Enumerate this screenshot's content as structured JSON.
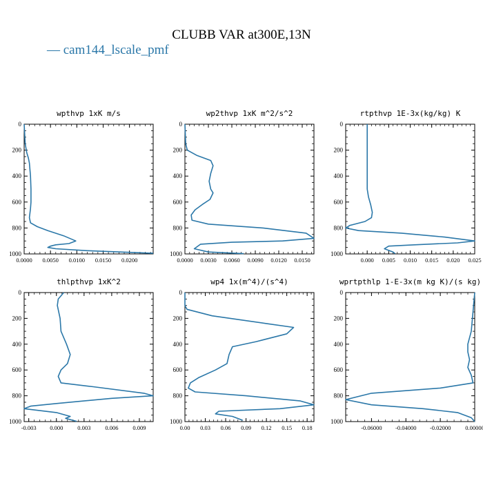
{
  "figure": {
    "title": "CLUBB VAR at300E,13N",
    "legend_entry": "— cam144_lscale_pmf",
    "series_color": "#2a77a8"
  },
  "chart_data": [
    {
      "type": "line",
      "title": "wpthvp   1xK m/s",
      "xlim": [
        0,
        0.0245
      ],
      "ylim": [
        1000,
        0
      ],
      "xticks": [
        0,
        0.005,
        0.01,
        0.015,
        0.02
      ],
      "xtick_labels": [
        "0.0000",
        "0.0050",
        "0.0100",
        "0.0150",
        "0.0200"
      ],
      "yticks": [
        0,
        200,
        400,
        600,
        800,
        1000
      ],
      "series": [
        {
          "x": [
            0.0,
            0.0002,
            0.0005,
            0.0008,
            0.001,
            0.0012,
            0.0013,
            0.0013,
            0.0012,
            0.001,
            0.0012,
            0.0025,
            0.0045,
            0.0075,
            0.0098,
            0.0085,
            0.006,
            0.005,
            0.0045,
            0.006,
            0.012,
            0.0245
          ],
          "y": [
            0,
            150,
            220,
            260,
            300,
            400,
            500,
            600,
            650,
            720,
            760,
            790,
            820,
            860,
            900,
            920,
            930,
            940,
            950,
            960,
            975,
            995
          ]
        }
      ]
    },
    {
      "type": "line",
      "title": "wp2thvp   1xK m^2/s^2",
      "xlim": [
        0,
        0.0165
      ],
      "ylim": [
        1000,
        0
      ],
      "xticks": [
        0,
        0.003,
        0.006,
        0.009,
        0.012,
        0.015
      ],
      "xtick_labels": [
        "0.0000",
        "0.0030",
        "0.0060",
        "0.0090",
        "0.0120",
        "0.0150"
      ],
      "yticks": [
        0,
        200,
        400,
        600,
        800,
        1000
      ],
      "series": [
        {
          "x": [
            0.0,
            0.0001,
            0.0003,
            0.0015,
            0.0033,
            0.0036,
            0.0033,
            0.0031,
            0.0033,
            0.0036,
            0.0032,
            0.0022,
            0.0013,
            0.0008,
            0.0009,
            0.003,
            0.01,
            0.0155,
            0.0165,
            0.0125,
            0.006,
            0.002,
            0.0012,
            0.003,
            0.0075
          ],
          "y": [
            0,
            150,
            200,
            240,
            280,
            320,
            380,
            440,
            500,
            530,
            580,
            620,
            660,
            700,
            740,
            770,
            800,
            840,
            880,
            900,
            910,
            925,
            960,
            985,
            998
          ]
        }
      ]
    },
    {
      "type": "line",
      "title": "rtpthvp   1E-3x(kg/kg) K",
      "xlim": [
        -0.005,
        0.025
      ],
      "ylim": [
        1000,
        0
      ],
      "xticks": [
        0,
        0.005,
        0.01,
        0.015,
        0.02,
        0.025
      ],
      "xtick_labels": [
        "0.000",
        "0.005",
        "0.010",
        "0.015",
        "0.020",
        "0.025"
      ],
      "yticks": [
        0,
        200,
        400,
        600,
        800,
        1000
      ],
      "series": [
        {
          "x": [
            0.0,
            0.0,
            0.0,
            0.0,
            0.0003,
            0.0008,
            0.0012,
            0.001,
            -0.0005,
            -0.004,
            -0.005,
            -0.002,
            0.008,
            0.018,
            0.025,
            0.021,
            0.011,
            0.005,
            0.004,
            0.006,
            0.0065
          ],
          "y": [
            0,
            200,
            400,
            500,
            560,
            620,
            680,
            720,
            750,
            780,
            800,
            820,
            840,
            870,
            900,
            915,
            930,
            940,
            960,
            985,
            998
          ]
        }
      ]
    },
    {
      "type": "line",
      "title": "thlpthvp   1xK^2",
      "xlim": [
        -0.0035,
        0.0105
      ],
      "ylim": [
        1000,
        0
      ],
      "xticks": [
        -0.003,
        0,
        0.003,
        0.006,
        0.009
      ],
      "xtick_labels": [
        "-0.003",
        "0.000",
        "0.003",
        "0.006",
        "0.009"
      ],
      "yticks": [
        0,
        200,
        400,
        600,
        800,
        1000
      ],
      "series": [
        {
          "x": [
            0.0008,
            0.0002,
            0.0001,
            0.0004,
            0.0005,
            0.0011,
            0.0015,
            0.0012,
            0.0005,
            0.0002,
            0.0005,
            0.004,
            0.0095,
            0.0105,
            0.006,
            0.0,
            -0.0028,
            -0.0035,
            0.0,
            0.0015,
            0.001,
            0.0022
          ],
          "y": [
            0,
            50,
            100,
            200,
            300,
            400,
            480,
            550,
            600,
            650,
            700,
            730,
            780,
            800,
            820,
            860,
            880,
            900,
            930,
            960,
            975,
            998
          ]
        }
      ]
    },
    {
      "type": "line",
      "title": "wp4   1x(m^4)/(s^4)",
      "xlim": [
        0,
        0.19
      ],
      "ylim": [
        1000,
        0
      ],
      "xticks": [
        0,
        0.03,
        0.06,
        0.09,
        0.12,
        0.15,
        0.18
      ],
      "xtick_labels": [
        "0.00",
        "0.03",
        "0.06",
        "0.09",
        "0.12",
        "0.15",
        "0.18"
      ],
      "yticks": [
        0,
        200,
        400,
        600,
        800,
        1000
      ],
      "series": [
        {
          "x": [
            0.0,
            0.0,
            0.003,
            0.04,
            0.12,
            0.16,
            0.15,
            0.105,
            0.07,
            0.065,
            0.062,
            0.045,
            0.02,
            0.008,
            0.005,
            0.015,
            0.09,
            0.17,
            0.19,
            0.14,
            0.05,
            0.045,
            0.07,
            0.085
          ],
          "y": [
            0,
            100,
            130,
            180,
            240,
            270,
            320,
            380,
            420,
            480,
            550,
            600,
            660,
            700,
            740,
            770,
            800,
            840,
            870,
            900,
            920,
            940,
            960,
            990
          ]
        }
      ]
    },
    {
      "type": "line",
      "title": "wprtpthlp   1-E-3x(m kg K)/(s kg)",
      "xlim": [
        -0.075,
        0.0
      ],
      "ylim": [
        1000,
        0
      ],
      "xticks": [
        -0.06,
        -0.04,
        -0.02,
        0.0
      ],
      "xtick_labels": [
        "-0.06000",
        "-0.04000",
        "-0.02000",
        "0.00000"
      ],
      "yticks": [
        0,
        200,
        400,
        600,
        800,
        1000
      ],
      "series": [
        {
          "x": [
            0.0,
            -0.002,
            -0.004,
            -0.004,
            -0.003,
            -0.004,
            -0.002,
            -0.001,
            -0.02,
            -0.06,
            -0.075,
            -0.06,
            -0.03,
            -0.01,
            -0.002,
            0.0
          ],
          "y": [
            0,
            300,
            400,
            460,
            520,
            580,
            640,
            700,
            740,
            780,
            830,
            870,
            900,
            930,
            970,
            1000
          ]
        }
      ]
    }
  ]
}
